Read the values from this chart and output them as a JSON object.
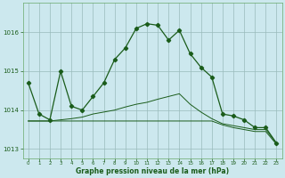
{
  "background_color": "#cce8ee",
  "grid_color": "#99bbbb",
  "line_color": "#1a5c1a",
  "xlabel": "Graphe pression niveau de la mer (hPa)",
  "xlim": [
    -0.5,
    23.5
  ],
  "ylim": [
    1012.75,
    1016.75
  ],
  "yticks": [
    1013,
    1014,
    1015,
    1016
  ],
  "xticks": [
    0,
    1,
    2,
    3,
    4,
    5,
    6,
    7,
    8,
    9,
    10,
    11,
    12,
    13,
    14,
    15,
    16,
    17,
    18,
    19,
    20,
    21,
    22,
    23
  ],
  "series1": [
    1014.7,
    1013.9,
    1013.75,
    1015.0,
    1014.1,
    1014.0,
    1014.35,
    1014.7,
    1015.3,
    1015.6,
    1016.1,
    1016.22,
    1016.18,
    1015.8,
    1016.05,
    1015.45,
    1015.1,
    1014.85,
    1013.9,
    1013.85,
    1013.75,
    1013.55,
    1013.55,
    1013.15
  ],
  "series2": [
    1013.72,
    1013.72,
    1013.72,
    1013.75,
    1013.78,
    1013.82,
    1013.9,
    1013.95,
    1014.0,
    1014.08,
    1014.15,
    1014.2,
    1014.28,
    1014.35,
    1014.42,
    1014.15,
    1013.95,
    1013.78,
    1013.65,
    1013.6,
    1013.55,
    1013.5,
    1013.5,
    1013.15
  ],
  "series3": [
    1013.72,
    1013.72,
    1013.72,
    1013.72,
    1013.72,
    1013.72,
    1013.72,
    1013.72,
    1013.72,
    1013.72,
    1013.72,
    1013.72,
    1013.72,
    1013.72,
    1013.72,
    1013.72,
    1013.72,
    1013.72,
    1013.62,
    1013.55,
    1013.5,
    1013.45,
    1013.45,
    1013.12
  ]
}
